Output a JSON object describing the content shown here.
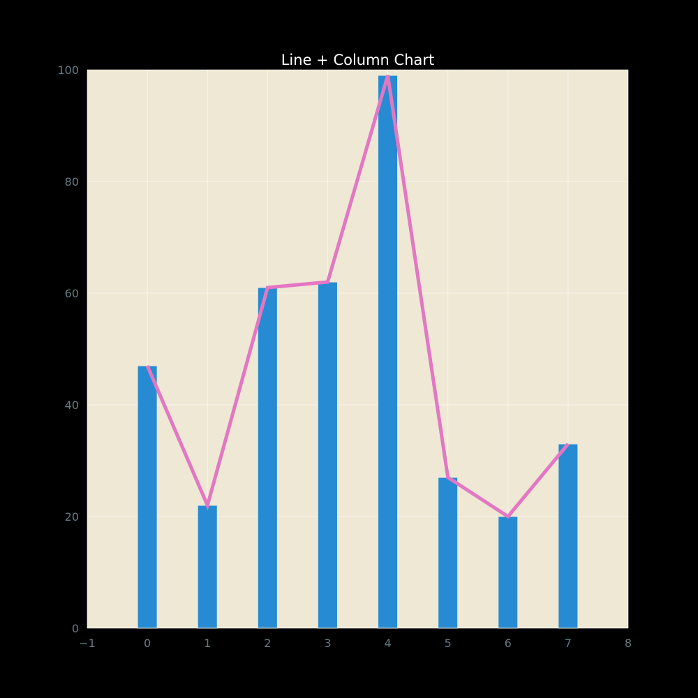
{
  "chart_data": {
    "type": "bar",
    "title": "Line + Column Chart",
    "xlabel": "",
    "ylabel": "",
    "x": [
      0,
      1,
      2,
      3,
      4,
      5,
      6,
      7
    ],
    "series": [
      {
        "type": "bar",
        "values": [
          47,
          22,
          61,
          62,
          99,
          27,
          20,
          33
        ],
        "color": "#268bd2"
      },
      {
        "type": "line",
        "values": [
          47,
          22,
          61,
          62,
          99,
          27,
          20,
          33
        ],
        "color": "#e377c2"
      }
    ],
    "xlim": [
      -1,
      8
    ],
    "ylim": [
      0,
      100
    ],
    "xticks": [
      "−1",
      "0",
      "1",
      "2",
      "3",
      "4",
      "5",
      "6",
      "7",
      "8"
    ],
    "yticks": [
      "0",
      "20",
      "40",
      "60",
      "80",
      "100"
    ],
    "grid": true,
    "legend": "none"
  },
  "colors": {
    "figure_background": "#000000",
    "plot_background": "#eee8d5",
    "grid": "#ffffff",
    "tick_label": "#657b83",
    "title": "#ffffff"
  }
}
